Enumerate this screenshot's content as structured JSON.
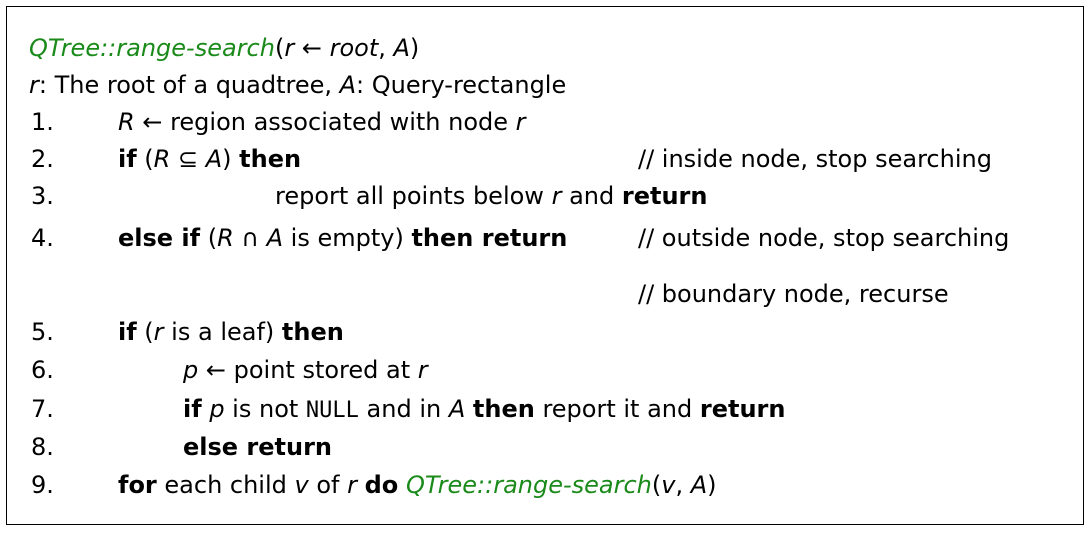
{
  "header": {
    "fn_name": "QTree::range-search",
    "params_open": "(",
    "param_r": "r",
    "arrow": " ← ",
    "param_root": "root",
    "comma": ", ",
    "param_A": "A",
    "params_close": ")"
  },
  "description": {
    "r": "r",
    "r_text": ": The root of a quadtree, ",
    "A": "A",
    "A_text": ": Query-rectangle"
  },
  "lines": [
    {
      "num": "1.",
      "R": "R",
      "arrow": " ← ",
      "text": "region associated with node ",
      "r": "r"
    },
    {
      "num": "2.",
      "if": "if",
      "open": " (",
      "R": "R",
      "subseteq": " ⊆ ",
      "A": "A",
      "close": ") ",
      "then": "then",
      "comment": "// inside node, stop searching"
    },
    {
      "num": "3.",
      "text": "report all points below ",
      "r": "r",
      "and": " and ",
      "return": "return"
    },
    {
      "num": "4.",
      "elseif": "else if",
      "open": " (",
      "R": "R",
      "cap": " ∩ ",
      "A": "A",
      "empty": " is empty) ",
      "then": "then return",
      "comment": "// outside node, stop searching"
    },
    {
      "comment": "// boundary node, recurse"
    },
    {
      "num": "5.",
      "if": "if",
      "open": " (",
      "r": "r",
      "text": " is a leaf) ",
      "then": "then"
    },
    {
      "num": "6.",
      "p": "p",
      "arrow": " ← ",
      "text": "point stored at ",
      "r": "r"
    },
    {
      "num": "7.",
      "if": "if",
      "p": "p",
      "t1": " is not ",
      "null": "NULL",
      "t2": " and in ",
      "A": "A",
      "then": "then",
      "t3": " report it and ",
      "return": "return"
    },
    {
      "num": "8.",
      "else_return": "else return"
    },
    {
      "num": "9.",
      "for": "for",
      "t1": " each child ",
      "v": "v",
      "t2": " of ",
      "r": "r",
      "do": "do",
      "fn": "QTree::range-search",
      "open": "(",
      "v2": "v",
      "comma": ", ",
      "A": "A",
      "close": ")"
    }
  ],
  "colors": {
    "function": "#1a8a1a",
    "border": "#000000"
  }
}
